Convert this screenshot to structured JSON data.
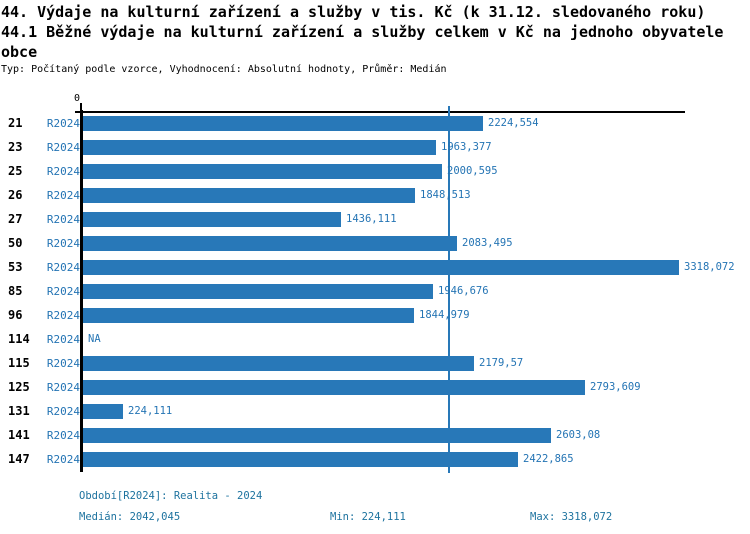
{
  "title": {
    "line1": "44. Výdaje na kulturní zařízení a služby v tis. Kč (k 31.12. sledovaného roku)",
    "line2": "44.1 Běžné výdaje na kulturní zařízení a služby celkem v Kč na jednoho obyvatele",
    "line3": "obce",
    "subtitle": "Typ: Počítaný podle vzorce, Vyhodnocení: Absolutní hodnoty, Průměr: Medián"
  },
  "axis": {
    "origin_tick_label": "0"
  },
  "colors": {
    "bar": "#2878b8",
    "median_line": "#2878b8",
    "series_label_text": "#2474b4",
    "footer_text": "#1e739f",
    "axis": "#000000"
  },
  "chart_data": {
    "type": "bar",
    "orientation": "horizontal",
    "title": "44. Výdaje na kulturní zařízení a služby v tis. Kč (k 31.12. sledovaného roku) / 44.1 Běžné výdaje na kulturní zařízení a služby celkem v Kč na jednoho obyvatele obce",
    "categories": [
      "21",
      "23",
      "25",
      "26",
      "27",
      "50",
      "53",
      "85",
      "96",
      "114",
      "115",
      "125",
      "131",
      "141",
      "147"
    ],
    "series_label": "R2024",
    "values": [
      2224.554,
      1963.377,
      2000.595,
      1848.513,
      1436.111,
      2083.495,
      3318.072,
      1946.676,
      1844.979,
      null,
      2179.57,
      2793.609,
      224.111,
      2603.08,
      2422.865
    ],
    "value_labels": [
      "2224,554",
      "1963,377",
      "2000,595",
      "1848,513",
      "1436,111",
      "2083,495",
      "3318,072",
      "1946,676",
      "1844,979",
      "NA",
      "2179,57",
      "2793,609",
      "224,111",
      "2603,08",
      "2422,865"
    ],
    "xlim": [
      0,
      3350
    ],
    "x_tick_labels": [
      "0"
    ],
    "median": 2042.045,
    "min": 224.111,
    "max": 3318.072,
    "median_reference_line": true,
    "grid": false,
    "legend_position": "none"
  },
  "footer": {
    "period": "Období[R2024]: Realita - 2024",
    "median": "Medián: 2042,045",
    "min": "Min: 224,111",
    "max": "Max: 3318,072"
  }
}
